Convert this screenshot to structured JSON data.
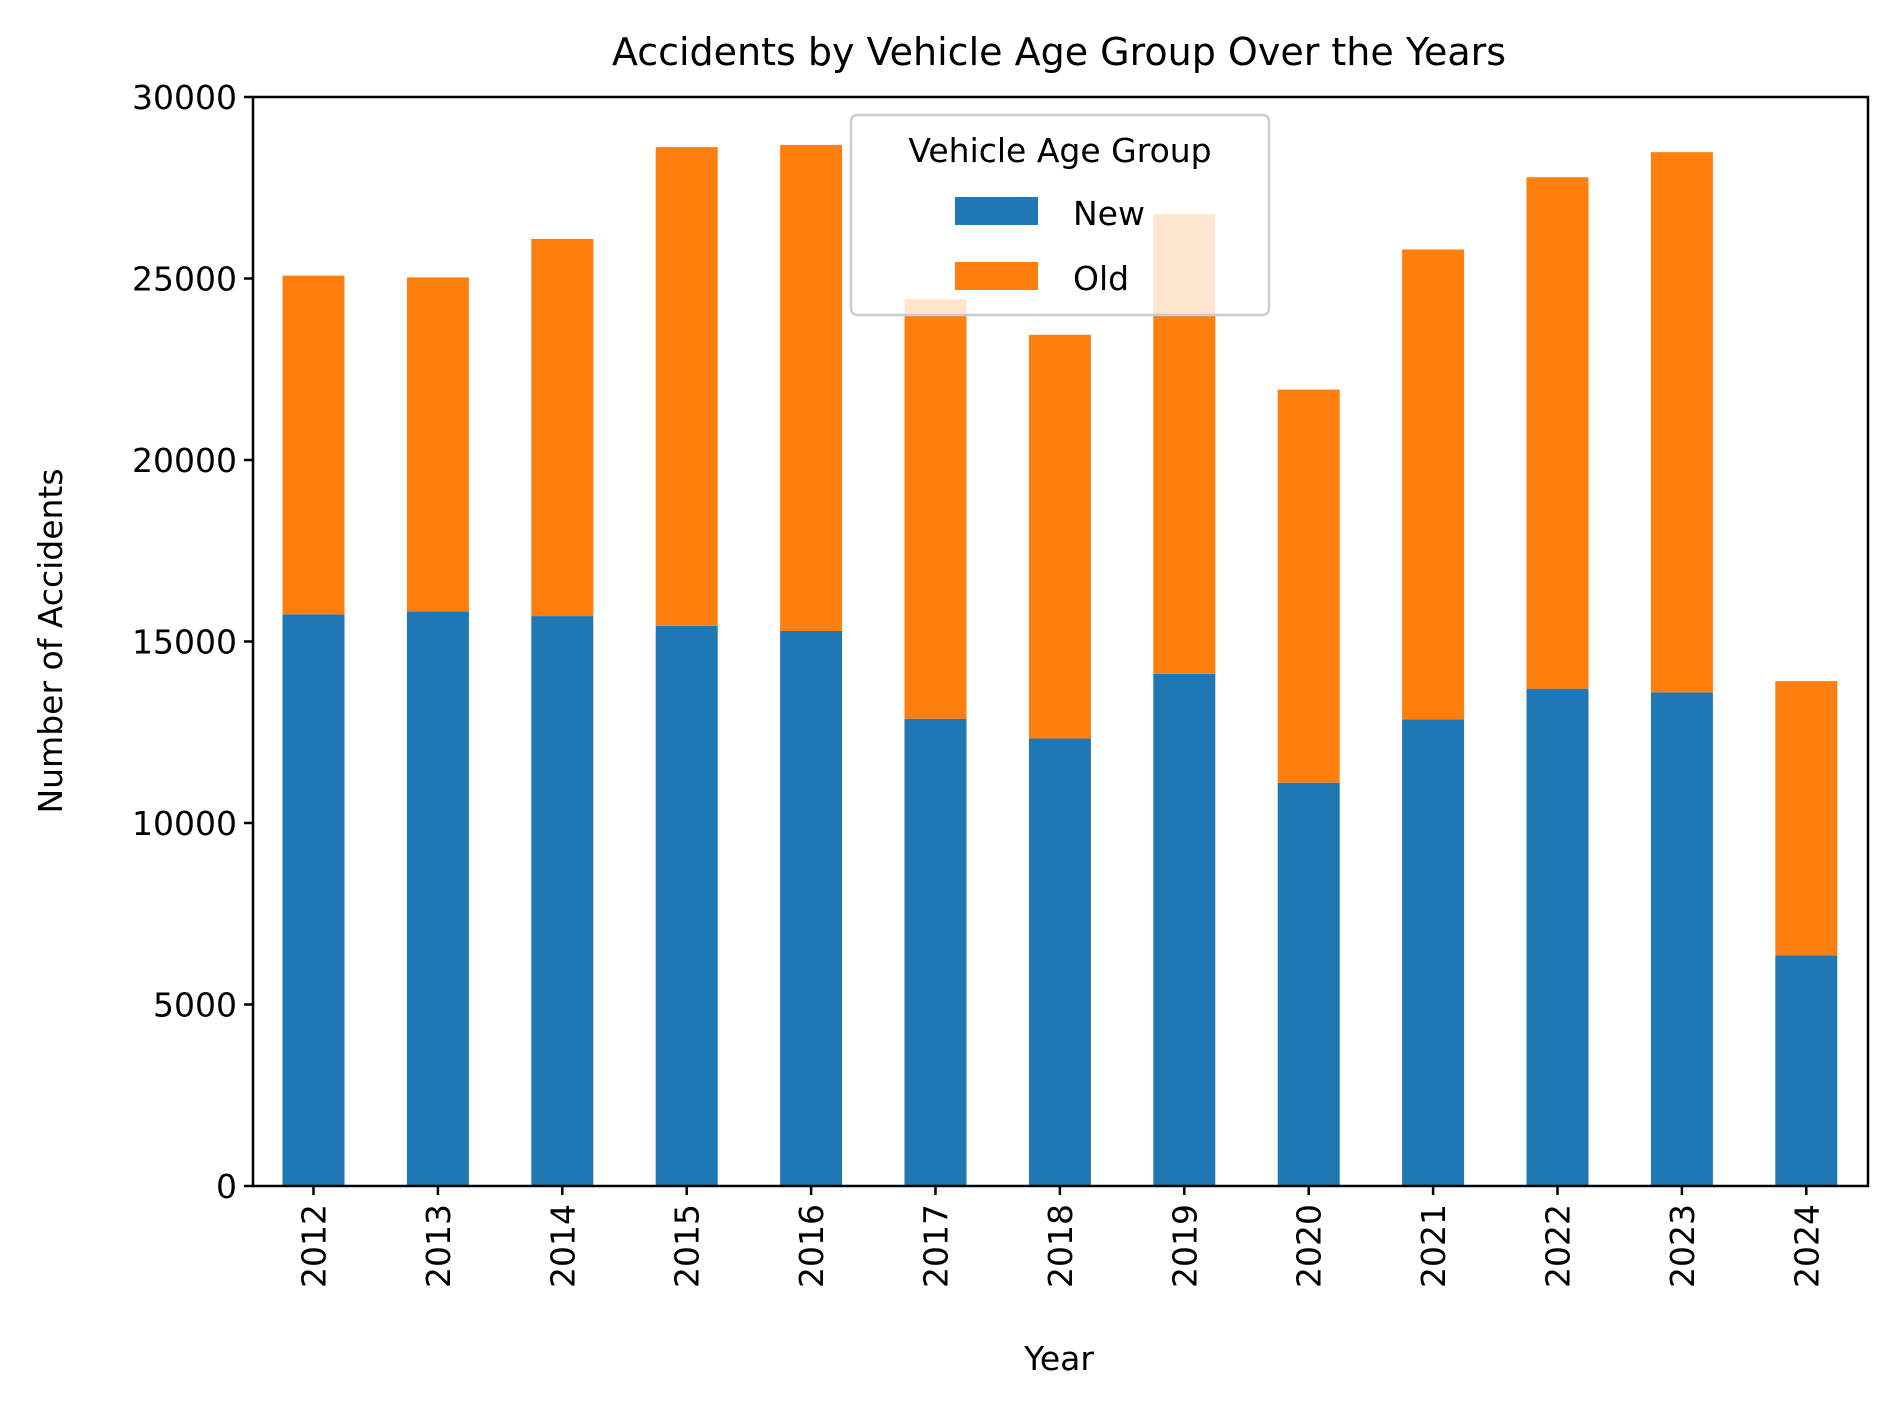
{
  "chart_data": {
    "type": "bar",
    "stacked": true,
    "title": "Accidents by Vehicle Age Group Over the Years",
    "xlabel": "Year",
    "ylabel": "Number of Accidents",
    "categories": [
      "2012",
      "2013",
      "2014",
      "2015",
      "2016",
      "2017",
      "2018",
      "2019",
      "2020",
      "2021",
      "2022",
      "2023",
      "2024"
    ],
    "series": [
      {
        "name": "New",
        "color": "#1f77b4",
        "values": [
          15750,
          15830,
          15700,
          15430,
          15290,
          12870,
          12330,
          14110,
          11110,
          12850,
          13700,
          13600,
          6350
        ]
      },
      {
        "name": "Old",
        "color": "#ff7f0e",
        "values": [
          9330,
          9200,
          10390,
          13190,
          13390,
          11560,
          11120,
          12660,
          10830,
          12950,
          14090,
          14880,
          7560
        ]
      }
    ],
    "ylim": [
      0,
      30000
    ],
    "yticks": [
      "0",
      "5000",
      "10000",
      "15000",
      "20000",
      "25000",
      "30000"
    ],
    "legend": {
      "title": "Vehicle Age Group",
      "placement": "upper center"
    },
    "grid": false
  }
}
